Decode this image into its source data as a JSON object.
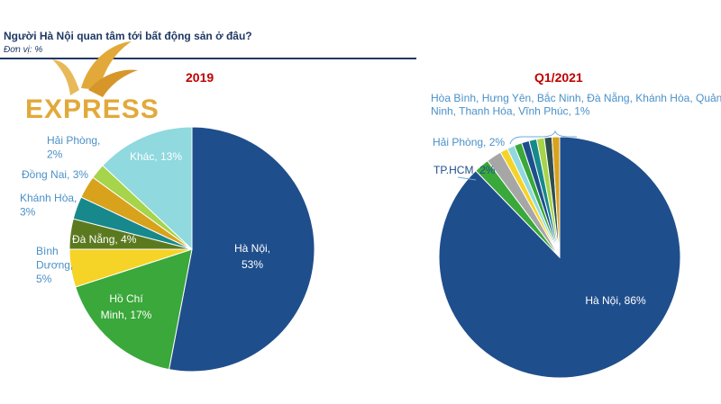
{
  "header": {
    "title": "Người Hà Nội quan tâm tới bất động sản ở đâu?",
    "unit": "Đơn vị: %"
  },
  "logo": {
    "text": "EXPRESS"
  },
  "colors": {
    "ha_noi": "#1f4e8c",
    "ho_chi_minh": "#3aa83a",
    "binh_duong": "#f5d327",
    "da_nang": "#5b7a1f",
    "khanh_hoa": "#17898c",
    "dong_nai": "#d9a21c",
    "hai_phong": "#a6d44a",
    "khac": "#8fd9df",
    "accent_title": "#1f3864",
    "year_color": "#c00000"
  },
  "chart_data": [
    {
      "type": "pie",
      "title": "2019",
      "slices": [
        {
          "label": "Hà Nội",
          "value": 53,
          "text": [
            "Hà Nội,",
            "53%"
          ]
        },
        {
          "label": "Hồ Chí Minh",
          "value": 17,
          "text": [
            "Hồ Chí",
            "Minh, 17%"
          ]
        },
        {
          "label": "Bình Dương",
          "value": 5,
          "text": [
            "Bình",
            "Dương,",
            "5%"
          ]
        },
        {
          "label": "Đà Nẵng",
          "value": 4,
          "text": [
            "Đà Nẵng, 4%"
          ]
        },
        {
          "label": "Khánh Hòa",
          "value": 3,
          "text": [
            "Khánh Hòa,",
            "3%"
          ]
        },
        {
          "label": "Đồng Nai",
          "value": 3,
          "text": [
            "Đồng Nai, 3%"
          ]
        },
        {
          "label": "Hải Phòng",
          "value": 2,
          "text": [
            "Hải Phòng,",
            "2%"
          ]
        },
        {
          "label": "Khác",
          "value": 13,
          "text": [
            "Khác, 13%"
          ]
        }
      ]
    },
    {
      "type": "pie",
      "title": "Q1/2021",
      "slices": [
        {
          "label": "Hà Nội",
          "value": 86,
          "text": [
            "Hà Nội, 86%"
          ]
        },
        {
          "label": "TP.HCM",
          "value": 2,
          "text": [
            "TP.HCM, 2%"
          ]
        },
        {
          "label": "Hải Phòng",
          "value": 2,
          "text": [
            "Hải Phòng, 2%"
          ]
        },
        {
          "label": "Hòa Bình",
          "value": 1
        },
        {
          "label": "Hưng Yên",
          "value": 1
        },
        {
          "label": "Bắc Ninh",
          "value": 1
        },
        {
          "label": "Đà Nẵng",
          "value": 1
        },
        {
          "label": "Khánh Hòa",
          "value": 1
        },
        {
          "label": "Quảng Ninh",
          "value": 1
        },
        {
          "label": "Thanh Hóa",
          "value": 1
        },
        {
          "label": "Vĩnh Phúc",
          "value": 1
        }
      ],
      "group_label": [
        "Hòa Bình, Hưng Yên, Bắc Ninh, Đà Nẵng, Khánh Hòa, Quảng",
        "Ninh, Thanh Hóa, Vĩnh Phúc, 1%"
      ]
    }
  ]
}
